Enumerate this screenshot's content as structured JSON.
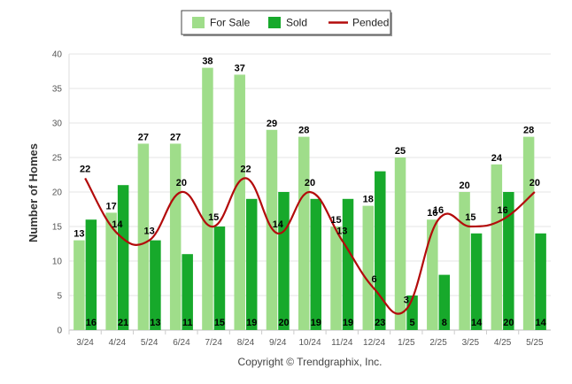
{
  "chart_data": {
    "type": "bar",
    "categories": [
      "3/24",
      "4/24",
      "5/24",
      "6/24",
      "7/24",
      "8/24",
      "9/24",
      "10/24",
      "11/24",
      "12/24",
      "1/25",
      "2/25",
      "3/25",
      "4/25",
      "5/25"
    ],
    "series": [
      {
        "name": "For Sale",
        "kind": "bar",
        "color": "#9fdd8a",
        "values": [
          13,
          17,
          27,
          27,
          38,
          37,
          29,
          28,
          15,
          18,
          25,
          16,
          20,
          24,
          28
        ]
      },
      {
        "name": "Sold",
        "kind": "bar",
        "color": "#17a92b",
        "values": [
          16,
          21,
          13,
          11,
          15,
          19,
          20,
          19,
          19,
          23,
          5,
          8,
          14,
          20,
          14
        ]
      },
      {
        "name": "Pended",
        "kind": "line",
        "color": "#b30b0b",
        "values": [
          22,
          14,
          13,
          20,
          15,
          22,
          14,
          20,
          13,
          6,
          3,
          16,
          15,
          16,
          20
        ]
      }
    ],
    "title": "",
    "xlabel": "",
    "ylabel": "Number of Homes",
    "ylim": [
      0,
      40
    ],
    "yticks": [
      0,
      5,
      10,
      15,
      20,
      25,
      30,
      35,
      40
    ],
    "grid": true,
    "legend": "top-center"
  },
  "footer": {
    "copyright": "Copyright © Trendgraphix, Inc."
  }
}
